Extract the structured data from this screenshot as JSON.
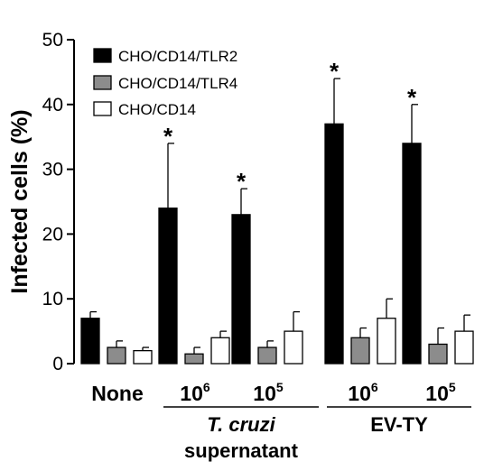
{
  "chart_data": {
    "type": "bar",
    "ylabel": "Infected cells (%)",
    "ylim": [
      0,
      50
    ],
    "yticks": [
      0,
      10,
      20,
      30,
      40,
      50
    ],
    "legend_position": "top-left",
    "categories": [
      {
        "base": "None",
        "sup": ""
      },
      {
        "base": "10",
        "sup": "6"
      },
      {
        "base": "10",
        "sup": "5"
      },
      {
        "base": "10",
        "sup": "6"
      },
      {
        "base": "10",
        "sup": "5"
      }
    ],
    "series": [
      {
        "name": "CHO/CD14/TLR2",
        "color": "#000000",
        "values": [
          7,
          24,
          23,
          37,
          34
        ],
        "errors": [
          1,
          10,
          4,
          7,
          6
        ]
      },
      {
        "name": "CHO/CD14/TLR4",
        "color": "#8c8c8c",
        "values": [
          2.5,
          1.5,
          2.5,
          4,
          3
        ],
        "errors": [
          1,
          1,
          1,
          1.5,
          2.5
        ]
      },
      {
        "name": "CHO/CD14",
        "color": "#ffffff",
        "values": [
          2,
          4,
          5,
          7,
          5
        ],
        "errors": [
          0.5,
          1,
          3,
          3,
          2.5
        ]
      }
    ],
    "significance": {
      "symbol": "*",
      "series": 0,
      "categories": [
        1,
        2,
        3,
        4
      ]
    },
    "groups": [
      {
        "label_italic": "T. cruzi",
        "label_normal": "supernatant",
        "categories": [
          1,
          2
        ]
      },
      {
        "label_italic": "",
        "label_normal": "EV-TY",
        "categories": [
          3,
          4
        ]
      }
    ]
  }
}
